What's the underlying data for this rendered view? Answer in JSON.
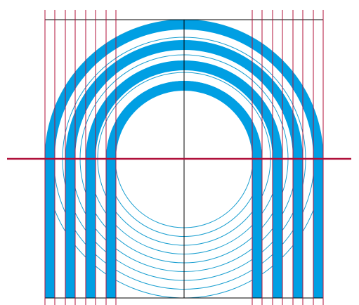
{
  "diagram": {
    "band_count": 4,
    "arc_band_color": "#009fe3",
    "thin_circle_color": "#1a9fd0",
    "guide_line_color": "#b0103a",
    "frame_line_color": "#000000",
    "background": "#ffffff"
  }
}
